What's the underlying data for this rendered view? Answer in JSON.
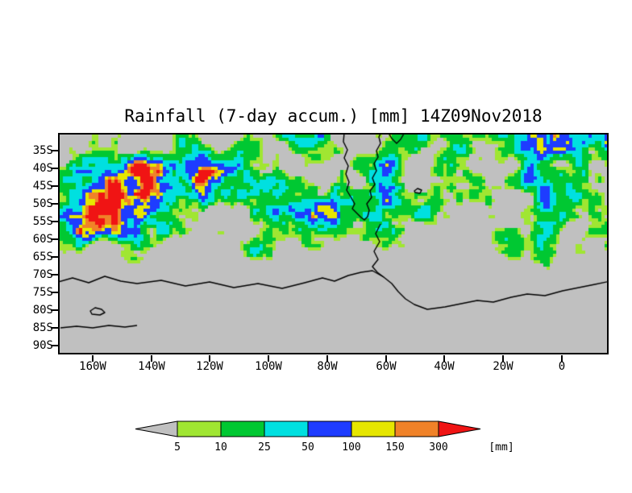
{
  "chart_data": {
    "type": "heatmap",
    "title": "Rainfall (7-day accum.) [mm] 14Z09Nov2018",
    "x_axis": {
      "tick_labels": [
        "160W",
        "140W",
        "120W",
        "100W",
        "80W",
        "60W",
        "40W",
        "20W",
        "0"
      ]
    },
    "y_axis": {
      "tick_labels": [
        "35S",
        "40S",
        "45S",
        "50S",
        "55S",
        "60S",
        "65S",
        "70S",
        "75S",
        "80S",
        "85S",
        "90S"
      ]
    },
    "colorbar": {
      "levels": [
        "5",
        "10",
        "25",
        "50",
        "100",
        "150",
        "300"
      ],
      "unit": "[mm]",
      "segment_colors": [
        "#c0c0c0",
        "#a0e632",
        "#00c832",
        "#00e0e0",
        "#1e3cff",
        "#e6e600",
        "#f08228",
        "#f01414"
      ],
      "segment_meaning": [
        "<5",
        "5-10",
        "10-25",
        "25-50",
        "50-100",
        "100-150",
        "150-300",
        ">300"
      ]
    },
    "map_background_color": "#c0c0c0",
    "frame_color": "#000000",
    "coastline_color": "#000000",
    "field_summary": "Bands of 7-day accumulated rainfall (mostly 10-100 mm, locally >150 mm) across the Southern Ocean between 35S and about 65S, with rain-free gray areas over Antarctica south of ~65S; coastlines of southern South America, the Antarctic Peninsula and Antarctica drawn in black."
  }
}
